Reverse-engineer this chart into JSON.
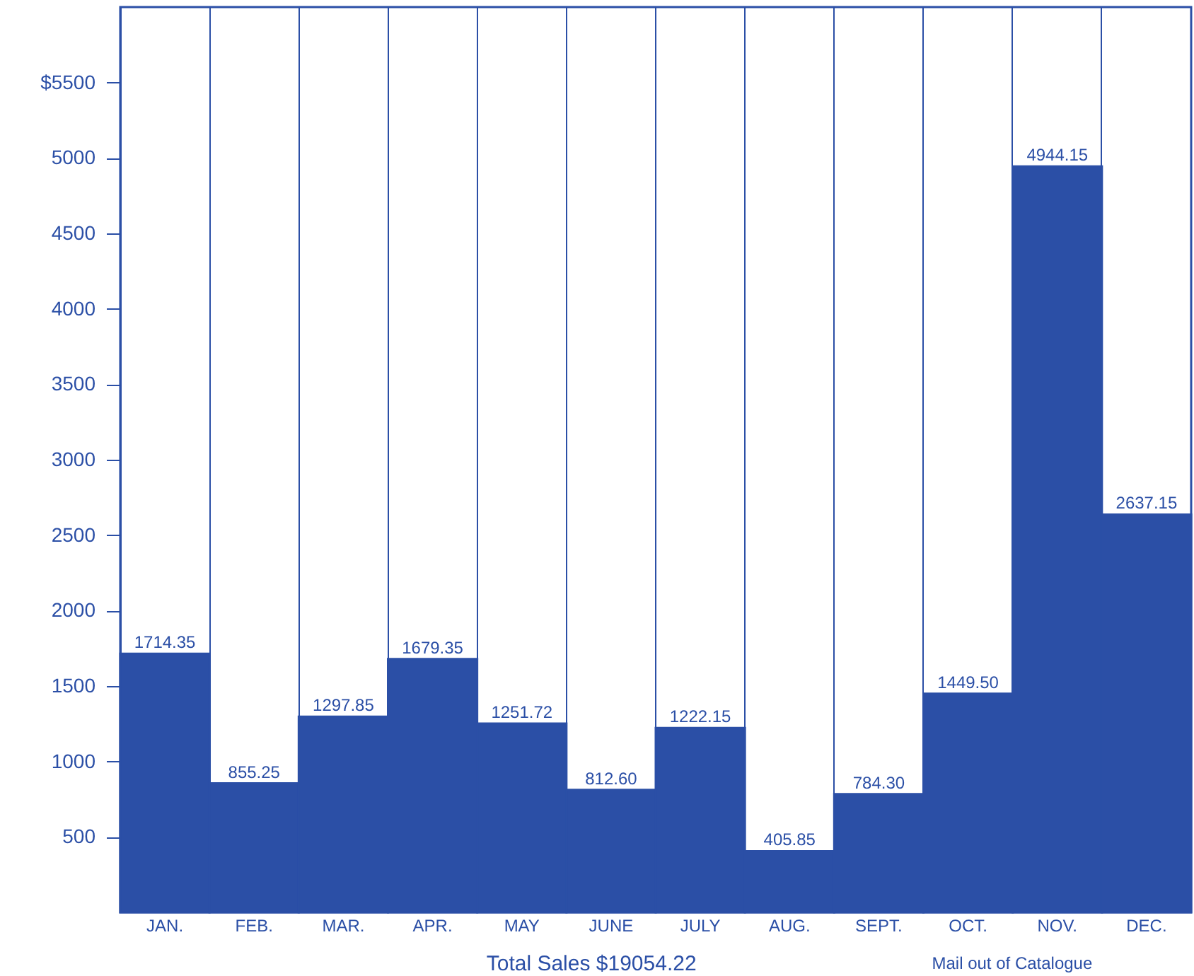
{
  "chart_data": {
    "type": "bar",
    "categories": [
      "JAN.",
      "FEB.",
      "MAR.",
      "APR.",
      "MAY",
      "JUNE",
      "JULY",
      "AUG.",
      "SEPT.",
      "OCT.",
      "NOV.",
      "DEC."
    ],
    "values": [
      1714.35,
      855.25,
      1297.85,
      1679.35,
      1251.72,
      812.6,
      1222.15,
      405.85,
      784.3,
      1449.5,
      4944.15,
      2637.15
    ],
    "value_labels": [
      "1714.35",
      "855.25",
      "1297.85",
      "1679.35",
      "1251.72",
      "812.60",
      "1222.15",
      "405.85",
      "784.30",
      "1449.50",
      "4944.15",
      "2637.15"
    ],
    "color": "#2b4fa6",
    "grid": "x",
    "ylim": [
      0,
      6000
    ],
    "yticks": [
      500,
      1000,
      1500,
      2000,
      2500,
      3000,
      3500,
      4000,
      4500,
      5000,
      {
        "value": 5500,
        "label": "$5500"
      }
    ],
    "annotations": [
      "Total Sales $19054.22",
      "Mail out of Catalogue"
    ]
  }
}
